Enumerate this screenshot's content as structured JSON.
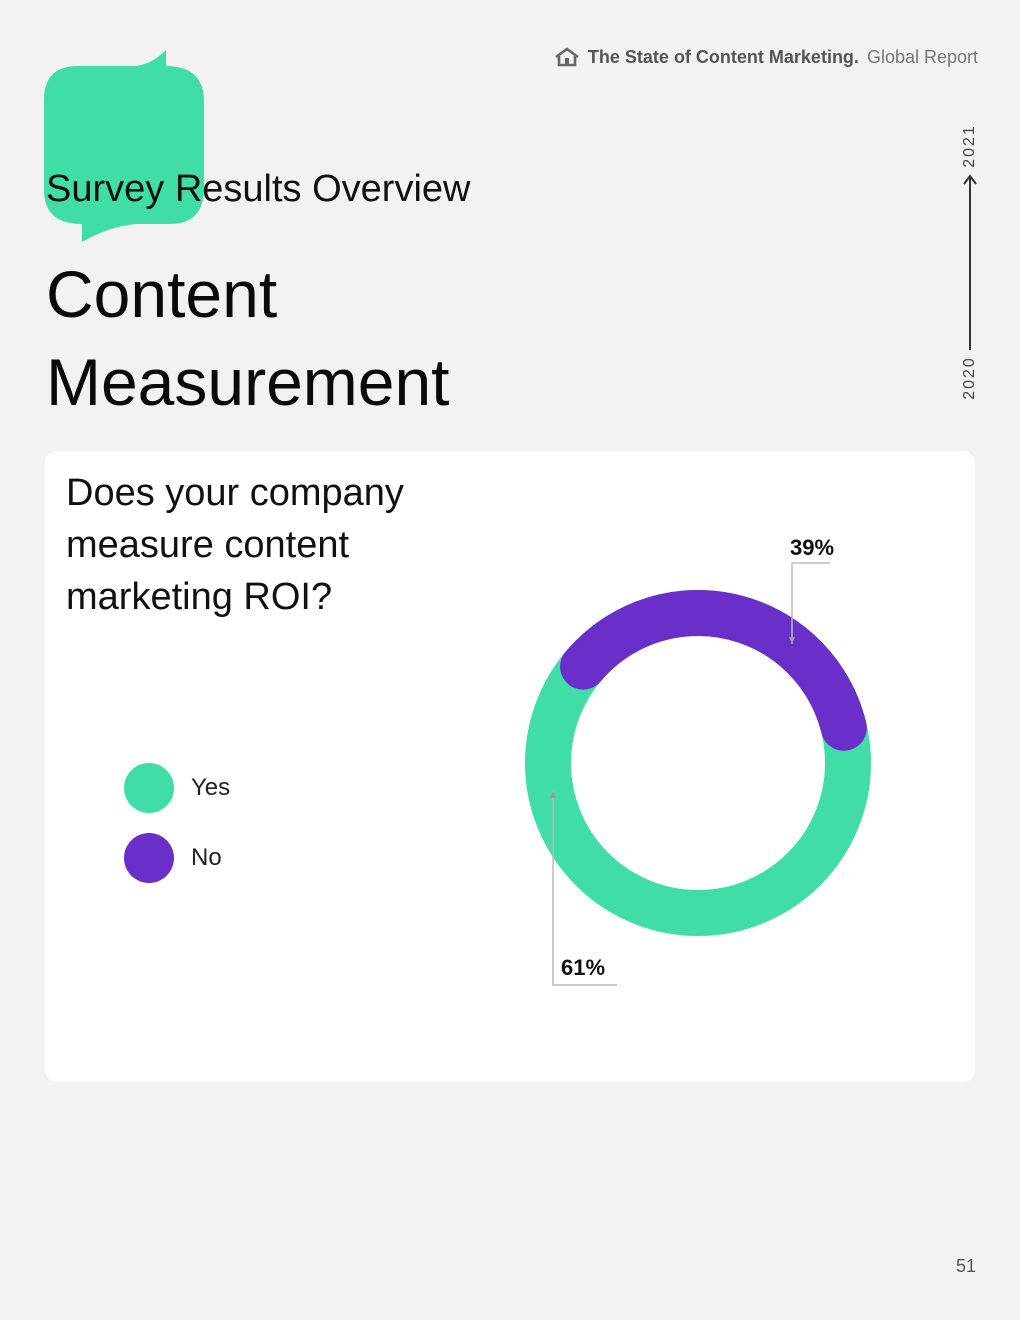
{
  "header": {
    "brand": "The State of Content Marketing.",
    "report": "Global Report",
    "icon": "home-icon"
  },
  "section_title": "Survey Results Overview",
  "page_title": "Content Measurement",
  "timeline": {
    "start": "2020",
    "end": "2021"
  },
  "colors": {
    "accent_green": "#40dea6",
    "accent_purple": "#6a2ec9"
  },
  "chart_data": {
    "type": "pie",
    "title": "Does your company measure content marketing ROI?",
    "categories": [
      "Yes",
      "No"
    ],
    "values": [
      61,
      39
    ],
    "data_labels": [
      "61%",
      "39%"
    ],
    "colors": [
      "#40dea6",
      "#6a2ec9"
    ],
    "legend_position": "left"
  },
  "page_number": "51"
}
